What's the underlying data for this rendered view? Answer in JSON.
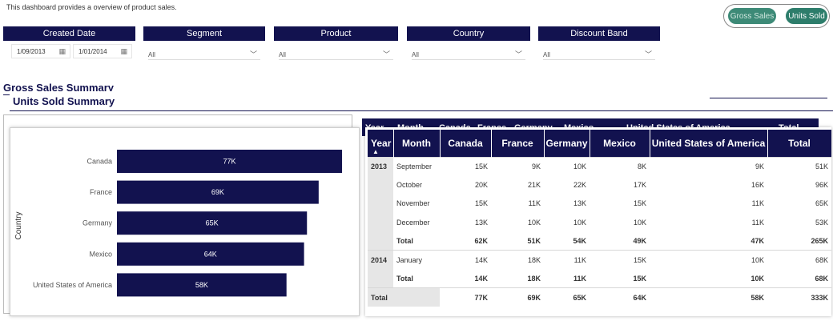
{
  "header": {
    "description": "This dashboard provides a overview of product sales."
  },
  "toggle": {
    "gross_sales": "Gross Sales",
    "units_sold": "Units Sold",
    "active": "units_sold",
    "accent": "#2d7d6b"
  },
  "filters": {
    "created_date": {
      "label": "Created Date",
      "start": "1/09/2013",
      "end": "1/01/2014"
    },
    "segment": {
      "label": "Segment",
      "value": "All"
    },
    "product": {
      "label": "Product",
      "value": "All"
    },
    "country": {
      "label": "Country",
      "value": "All"
    },
    "discount_band": {
      "label": "Discount Band",
      "value": "All"
    }
  },
  "sections": {
    "background_title": "Gross Sales Summary",
    "title": "Units Sold Summary"
  },
  "colors": {
    "navy": "#12124f",
    "grey_cell": "#e6e6e6"
  },
  "chart_data": {
    "type": "bar",
    "orientation": "horizontal",
    "ylabel": "Country",
    "categories": [
      "Canada",
      "France",
      "Germany",
      "Mexico",
      "United States of America"
    ],
    "values": [
      77,
      69,
      65,
      64,
      58
    ],
    "data_labels": [
      "77K",
      "69K",
      "65K",
      "64K",
      "58K"
    ],
    "unit": "K",
    "xlim": [
      0,
      80
    ]
  },
  "background_table_headers": [
    "Year",
    "Month",
    "Canada",
    "France",
    "Germany",
    "Mexico",
    "United States of America",
    "Total"
  ],
  "table": {
    "columns": [
      "Year",
      "Month",
      "Canada",
      "France",
      "Germany",
      "Mexico",
      "United States of America",
      "Total"
    ],
    "rows": [
      {
        "kind": "data",
        "year": "2013",
        "month": "September",
        "cells": [
          "15K",
          "9K",
          "10K",
          "8K",
          "9K",
          "51K"
        ]
      },
      {
        "kind": "data",
        "year": "",
        "month": "October",
        "cells": [
          "20K",
          "21K",
          "22K",
          "17K",
          "16K",
          "96K"
        ]
      },
      {
        "kind": "data",
        "year": "",
        "month": "November",
        "cells": [
          "15K",
          "11K",
          "13K",
          "15K",
          "11K",
          "65K"
        ]
      },
      {
        "kind": "data",
        "year": "",
        "month": "December",
        "cells": [
          "13K",
          "10K",
          "10K",
          "10K",
          "11K",
          "53K"
        ]
      },
      {
        "kind": "subtotal",
        "year": "",
        "month": "Total",
        "cells": [
          "62K",
          "51K",
          "54K",
          "49K",
          "47K",
          "265K"
        ]
      },
      {
        "kind": "data",
        "year": "2014",
        "month": "January",
        "cells": [
          "14K",
          "18K",
          "11K",
          "15K",
          "10K",
          "68K"
        ]
      },
      {
        "kind": "subtotal",
        "year": "",
        "month": "Total",
        "cells": [
          "14K",
          "18K",
          "11K",
          "15K",
          "10K",
          "68K"
        ]
      },
      {
        "kind": "grand",
        "year": "Total",
        "month": "",
        "cells": [
          "77K",
          "69K",
          "65K",
          "64K",
          "58K",
          "333K"
        ]
      }
    ]
  }
}
